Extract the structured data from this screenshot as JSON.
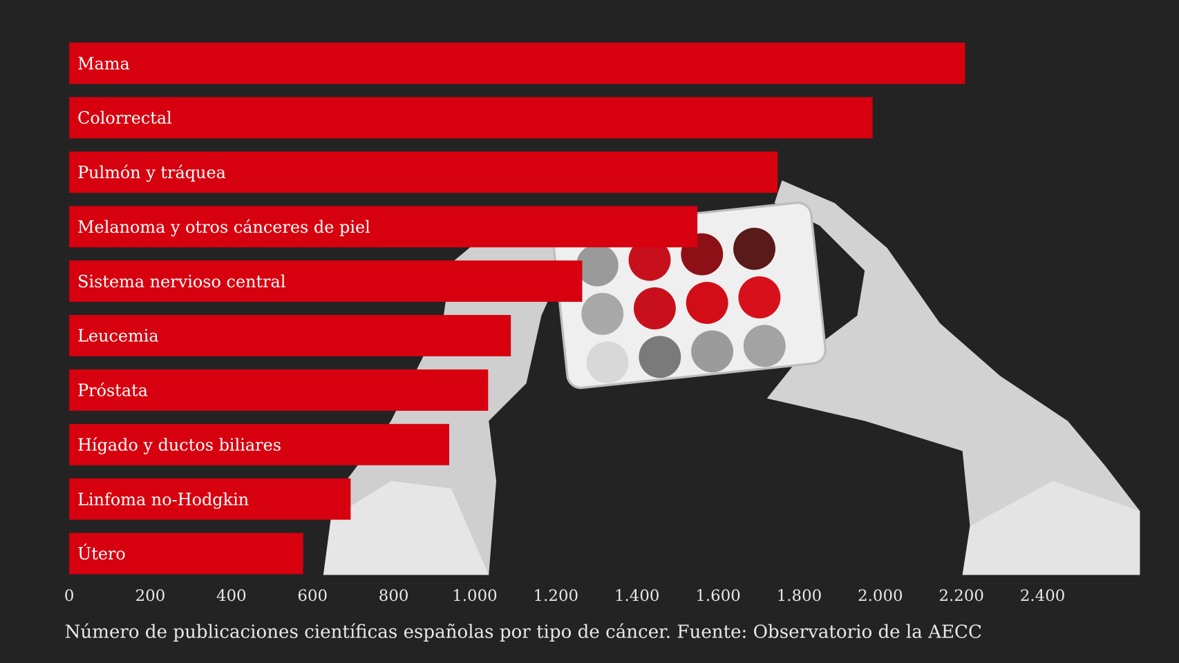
{
  "chart_data": {
    "type": "bar",
    "orientation": "horizontal",
    "caption": "Número de publicaciones científicas españolas por tipo de cáncer. Fuente: Observatorio de la AECC",
    "categories": [
      "Mama",
      "Colorrectal",
      "Pulmón y tráquea",
      "Melanoma y otros cánceres de piel",
      "Sistema nervioso central",
      "Leucemia",
      "Próstata",
      "Hígado y ductos biliares",
      "Linfoma no-Hodgkin",
      "Útero"
    ],
    "values": [
      2209,
      1981,
      1747,
      1549,
      1265,
      1089,
      1033,
      937,
      694,
      577
    ],
    "color": "#d7000f",
    "xlim": [
      0,
      2640
    ],
    "xticks": [
      0,
      200,
      400,
      600,
      800,
      {
        "value": 1000,
        "label": "1.000"
      },
      {
        "value": 1200,
        "label": "1.200"
      },
      {
        "value": 1400,
        "label": "1.400"
      },
      {
        "value": 1600,
        "label": "1.600"
      },
      {
        "value": 1800,
        "label": "1.800"
      },
      {
        "value": 2000,
        "label": "2.000"
      },
      {
        "value": 2200,
        "label": "2.200"
      },
      {
        "value": 2400,
        "label": "2.400"
      }
    ],
    "grid": false
  }
}
